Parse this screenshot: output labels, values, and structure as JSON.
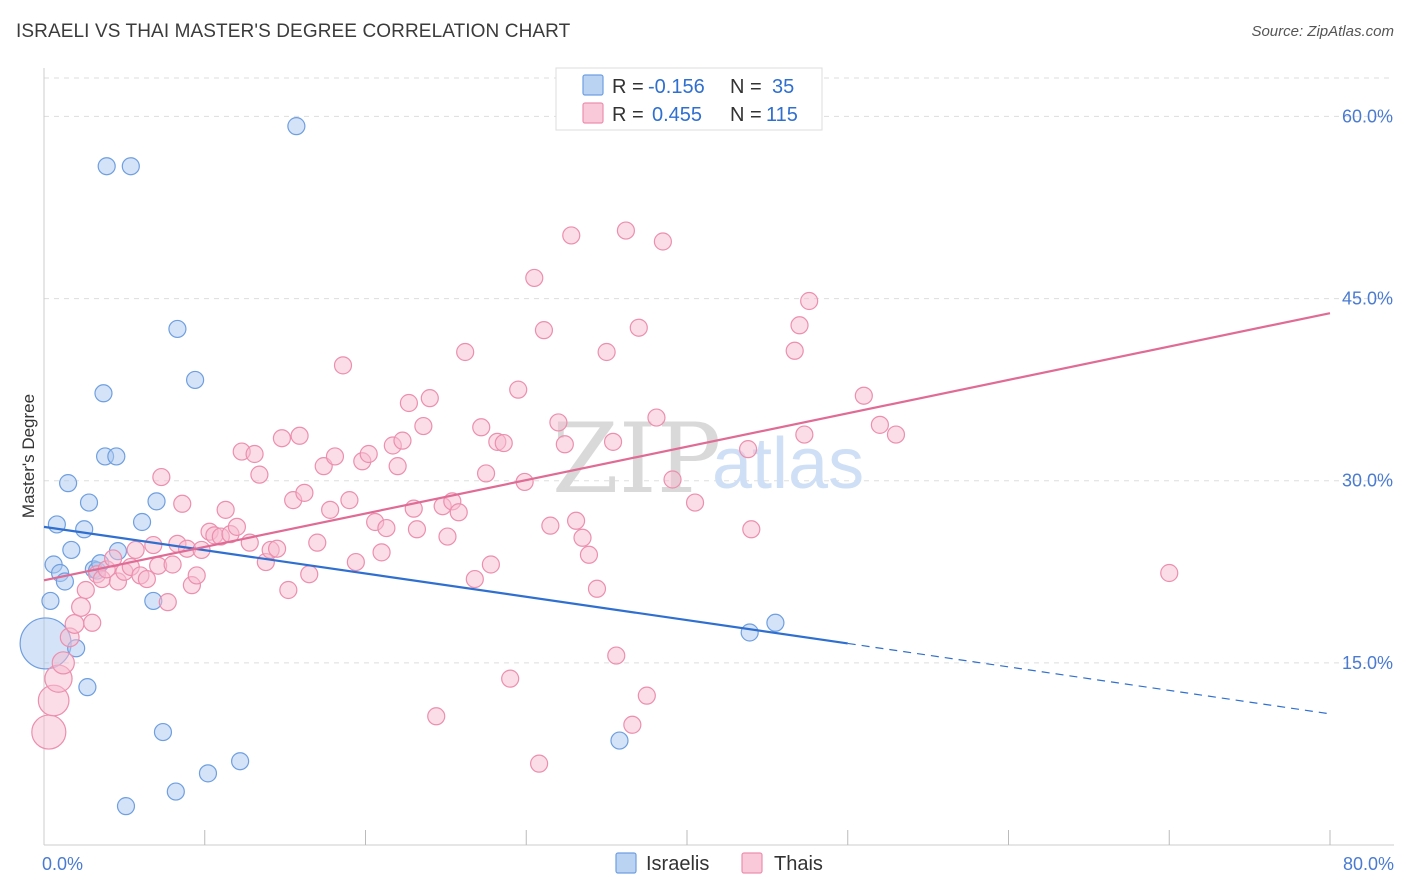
{
  "header": {
    "title": "ISRAELI VS THAI MASTER'S DEGREE CORRELATION CHART",
    "source": "Source: ZipAtlas.com"
  },
  "watermark": {
    "zip": "ZIP",
    "atlas": "atlas"
  },
  "colors": {
    "israelis_fill": "#a9c8f0",
    "israelis_stroke": "#6f9fe0",
    "israelis_line": "#2f6fd0",
    "thais_fill": "#f7bcd0",
    "thais_stroke": "#ec8fae",
    "thais_line": "#e06b95",
    "tick_text": "#4a7bd1",
    "grid": "#dddddd"
  },
  "legend_top": {
    "rows": [
      {
        "r_label": "R = ",
        "r_value": "-0.156",
        "n_label": "N = ",
        "n_value": "35",
        "series": "israelis"
      },
      {
        "r_label": "R = ",
        "r_value": "0.455",
        "n_label": "N = ",
        "n_value": "115",
        "series": "thais"
      }
    ]
  },
  "legend_bottom": {
    "items": [
      "Israelis",
      "Thais"
    ]
  },
  "chart_data": {
    "type": "scatter",
    "title": "ISRAELI VS THAI MASTER'S DEGREE CORRELATION CHART",
    "xlabel": "",
    "ylabel": "Master's Degree",
    "xlim": [
      0,
      80
    ],
    "ylim": [
      0,
      63
    ],
    "x_tick_labels": [
      {
        "value": 0,
        "label": "0.0%"
      },
      {
        "value": 80,
        "label": "80.0%"
      }
    ],
    "y_tick_labels": [
      {
        "value": 15,
        "label": "15.0%"
      },
      {
        "value": 30,
        "label": "30.0%"
      },
      {
        "value": 45,
        "label": "45.0%"
      },
      {
        "value": 60,
        "label": "60.0%"
      }
    ],
    "series": [
      {
        "name": "Israelis",
        "R": -0.156,
        "N": 35,
        "trend": {
          "x0": 0,
          "y0": 26.2,
          "x1": 50,
          "y1": 16.6,
          "dash_x1": 80,
          "dash_y1": 10.8
        },
        "points": [
          [
            0.1,
            16.6,
            3.0
          ],
          [
            0.4,
            20.1,
            1
          ],
          [
            0.6,
            23.1,
            1
          ],
          [
            0.8,
            26.4,
            1
          ],
          [
            1.0,
            22.4,
            1
          ],
          [
            1.3,
            21.7,
            1
          ],
          [
            1.5,
            29.8,
            1
          ],
          [
            1.7,
            24.3,
            1
          ],
          [
            2.0,
            16.2,
            1
          ],
          [
            2.5,
            26.0,
            1
          ],
          [
            2.7,
            13.0,
            1
          ],
          [
            2.8,
            28.2,
            1
          ],
          [
            3.1,
            22.7,
            1
          ],
          [
            3.3,
            22.6,
            1
          ],
          [
            3.5,
            23.2,
            1
          ],
          [
            3.7,
            37.2,
            1
          ],
          [
            3.9,
            55.9,
            1
          ],
          [
            3.8,
            32.0,
            1
          ],
          [
            4.5,
            32.0,
            1
          ],
          [
            4.6,
            24.2,
            1
          ],
          [
            5.1,
            3.2,
            1
          ],
          [
            5.4,
            55.9,
            1
          ],
          [
            6.1,
            26.6,
            1
          ],
          [
            6.8,
            20.1,
            1
          ],
          [
            7.0,
            28.3,
            1
          ],
          [
            7.4,
            9.3,
            1
          ],
          [
            8.2,
            4.4,
            1
          ],
          [
            8.3,
            42.5,
            1
          ],
          [
            9.4,
            38.3,
            1
          ],
          [
            10.2,
            5.9,
            1
          ],
          [
            12.2,
            6.9,
            1
          ],
          [
            15.7,
            59.2,
            1
          ],
          [
            35.8,
            8.6,
            1
          ],
          [
            43.9,
            17.5,
            1
          ],
          [
            45.5,
            18.3,
            1
          ]
        ]
      },
      {
        "name": "Thais",
        "R": 0.455,
        "N": 115,
        "trend": {
          "x0": 0,
          "y0": 21.8,
          "x1": 80,
          "y1": 43.8
        },
        "points": [
          [
            0.3,
            9.3,
            2.0
          ],
          [
            0.6,
            11.9,
            1.8
          ],
          [
            0.9,
            13.7,
            1.6
          ],
          [
            1.2,
            15.0,
            1.3
          ],
          [
            1.6,
            17.1,
            1.1
          ],
          [
            1.9,
            18.2,
            1.1
          ],
          [
            2.3,
            19.6,
            1.1
          ],
          [
            2.6,
            21.0,
            1
          ],
          [
            3.0,
            18.3,
            1
          ],
          [
            3.3,
            22.3,
            1
          ],
          [
            3.6,
            21.9,
            1
          ],
          [
            3.9,
            22.7,
            1
          ],
          [
            4.3,
            23.6,
            1
          ],
          [
            4.6,
            21.7,
            1
          ],
          [
            5.0,
            22.5,
            1
          ],
          [
            5.4,
            22.9,
            1
          ],
          [
            5.7,
            24.3,
            1
          ],
          [
            6.0,
            22.2,
            1
          ],
          [
            6.4,
            21.9,
            1
          ],
          [
            6.8,
            24.7,
            1
          ],
          [
            7.1,
            23.0,
            1
          ],
          [
            7.3,
            30.3,
            1
          ],
          [
            7.7,
            20.0,
            1
          ],
          [
            8.0,
            23.1,
            1
          ],
          [
            8.3,
            24.8,
            1
          ],
          [
            8.6,
            28.1,
            1
          ],
          [
            8.9,
            24.4,
            1
          ],
          [
            9.2,
            21.4,
            1
          ],
          [
            9.5,
            22.2,
            1
          ],
          [
            9.8,
            24.3,
            1
          ],
          [
            10.3,
            25.8,
            1
          ],
          [
            10.6,
            25.5,
            1
          ],
          [
            11.0,
            25.4,
            1
          ],
          [
            11.3,
            27.6,
            1
          ],
          [
            11.6,
            25.6,
            1
          ],
          [
            12.0,
            26.2,
            1
          ],
          [
            12.3,
            32.4,
            1
          ],
          [
            12.8,
            24.9,
            1
          ],
          [
            13.1,
            32.2,
            1
          ],
          [
            13.4,
            30.5,
            1
          ],
          [
            13.8,
            23.3,
            1
          ],
          [
            14.1,
            24.3,
            1
          ],
          [
            14.5,
            24.4,
            1
          ],
          [
            14.8,
            33.5,
            1
          ],
          [
            15.2,
            21.0,
            1
          ],
          [
            15.5,
            28.4,
            1
          ],
          [
            15.9,
            33.7,
            1
          ],
          [
            16.2,
            29.0,
            1
          ],
          [
            16.5,
            22.3,
            1
          ],
          [
            17.0,
            24.9,
            1
          ],
          [
            17.4,
            31.2,
            1
          ],
          [
            17.8,
            27.6,
            1
          ],
          [
            18.1,
            32.0,
            1
          ],
          [
            18.6,
            39.5,
            1
          ],
          [
            19.0,
            28.4,
            1
          ],
          [
            19.4,
            23.3,
            1
          ],
          [
            19.8,
            31.6,
            1
          ],
          [
            20.2,
            32.2,
            1
          ],
          [
            20.6,
            26.6,
            1
          ],
          [
            21.0,
            24.1,
            1
          ],
          [
            21.3,
            26.1,
            1
          ],
          [
            21.7,
            32.9,
            1
          ],
          [
            22.0,
            31.2,
            1
          ],
          [
            22.3,
            33.3,
            1
          ],
          [
            22.7,
            36.4,
            1
          ],
          [
            23.0,
            27.7,
            1
          ],
          [
            23.2,
            26.0,
            1
          ],
          [
            23.6,
            34.5,
            1
          ],
          [
            24.0,
            36.8,
            1
          ],
          [
            24.4,
            10.6,
            1
          ],
          [
            24.8,
            27.9,
            1
          ],
          [
            25.1,
            25.4,
            1
          ],
          [
            25.4,
            28.3,
            1
          ],
          [
            25.8,
            27.4,
            1
          ],
          [
            26.2,
            40.6,
            1
          ],
          [
            26.8,
            21.9,
            1
          ],
          [
            27.2,
            34.4,
            1
          ],
          [
            27.8,
            23.1,
            1
          ],
          [
            27.5,
            30.6,
            1
          ],
          [
            28.2,
            33.2,
            1
          ],
          [
            28.6,
            33.1,
            1
          ],
          [
            29.0,
            13.7,
            1
          ],
          [
            29.5,
            37.5,
            1
          ],
          [
            29.9,
            29.9,
            1
          ],
          [
            30.5,
            46.7,
            1
          ],
          [
            30.8,
            6.7,
            1
          ],
          [
            31.1,
            42.4,
            1
          ],
          [
            31.5,
            26.3,
            1
          ],
          [
            32.0,
            34.8,
            1
          ],
          [
            32.4,
            33.0,
            1
          ],
          [
            32.8,
            50.2,
            1
          ],
          [
            33.1,
            26.7,
            1
          ],
          [
            33.5,
            25.3,
            1
          ],
          [
            33.9,
            23.9,
            1
          ],
          [
            34.4,
            21.1,
            1
          ],
          [
            35.0,
            40.6,
            1
          ],
          [
            35.4,
            33.2,
            1
          ],
          [
            35.6,
            15.6,
            1
          ],
          [
            36.2,
            50.6,
            1
          ],
          [
            36.6,
            9.9,
            1
          ],
          [
            37.0,
            42.6,
            1
          ],
          [
            37.5,
            12.3,
            1
          ],
          [
            38.1,
            35.2,
            1
          ],
          [
            38.5,
            49.7,
            1
          ],
          [
            39.1,
            30.1,
            1
          ],
          [
            40.5,
            28.2,
            1
          ],
          [
            43.8,
            32.6,
            1
          ],
          [
            44.0,
            26.0,
            1
          ],
          [
            46.7,
            40.7,
            1
          ],
          [
            47.0,
            42.8,
            1
          ],
          [
            47.3,
            33.8,
            1
          ],
          [
            47.6,
            44.8,
            1
          ],
          [
            51.0,
            37.0,
            1
          ],
          [
            52.0,
            34.6,
            1
          ],
          [
            53.0,
            33.8,
            1
          ],
          [
            70.0,
            22.4,
            1
          ]
        ]
      }
    ]
  }
}
